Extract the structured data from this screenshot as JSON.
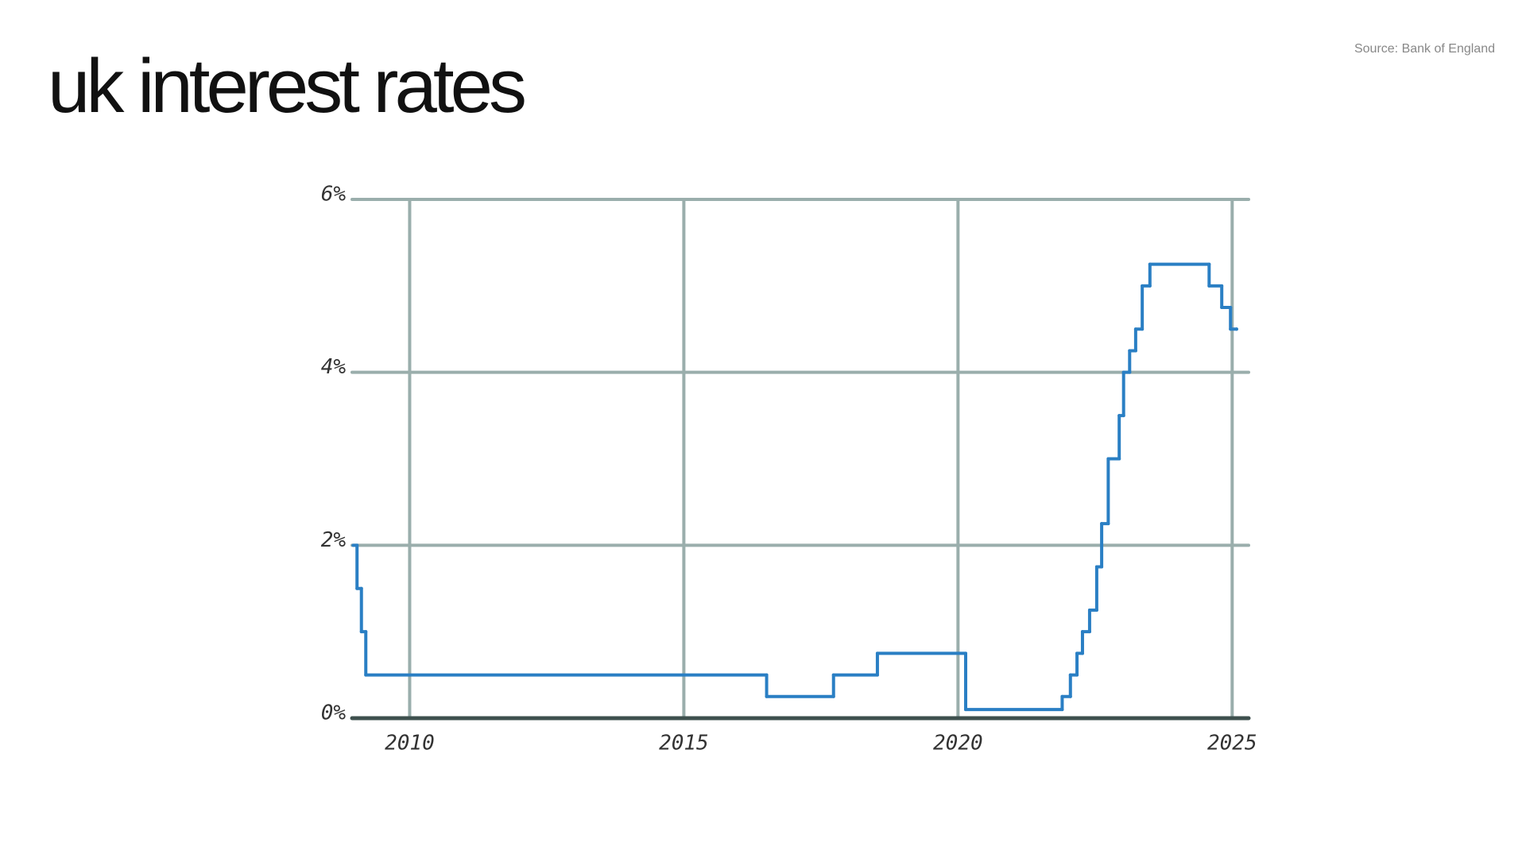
{
  "title": "uk interest rates",
  "source": "Source: Bank of England",
  "chart_data": {
    "type": "line",
    "step": "after",
    "color": "#2a7fc4",
    "grid": true,
    "grid_color": "#9aaeac",
    "axis_color": "#3e504e",
    "x": [
      2008.97,
      2009.04,
      2009.12,
      2009.2,
      2016.51,
      2017.73,
      2018.53,
      2020.14,
      2021.9,
      2022.05,
      2022.17,
      2022.27,
      2022.4,
      2022.53,
      2022.62,
      2022.74,
      2022.94,
      2023.02,
      2023.13,
      2023.24,
      2023.36,
      2023.5,
      2024.58,
      2024.81,
      2024.97,
      2025.08
    ],
    "values": [
      2.0,
      1.5,
      1.0,
      0.5,
      0.25,
      0.5,
      0.75,
      0.1,
      0.25,
      0.5,
      0.75,
      1.0,
      1.25,
      1.75,
      2.25,
      3.0,
      3.5,
      4.0,
      4.25,
      4.5,
      5.0,
      5.25,
      5.0,
      4.75,
      4.5,
      4.5
    ],
    "xlim": [
      2008.95,
      2025.3
    ],
    "ylim": [
      0,
      6
    ],
    "xticks": [
      2010,
      2015,
      2020,
      2025
    ],
    "yticks": [
      {
        "value": 0,
        "label": "0%"
      },
      {
        "value": 2,
        "label": "2%"
      },
      {
        "value": 4,
        "label": "4%"
      },
      {
        "value": 6,
        "label": "6%"
      }
    ]
  }
}
